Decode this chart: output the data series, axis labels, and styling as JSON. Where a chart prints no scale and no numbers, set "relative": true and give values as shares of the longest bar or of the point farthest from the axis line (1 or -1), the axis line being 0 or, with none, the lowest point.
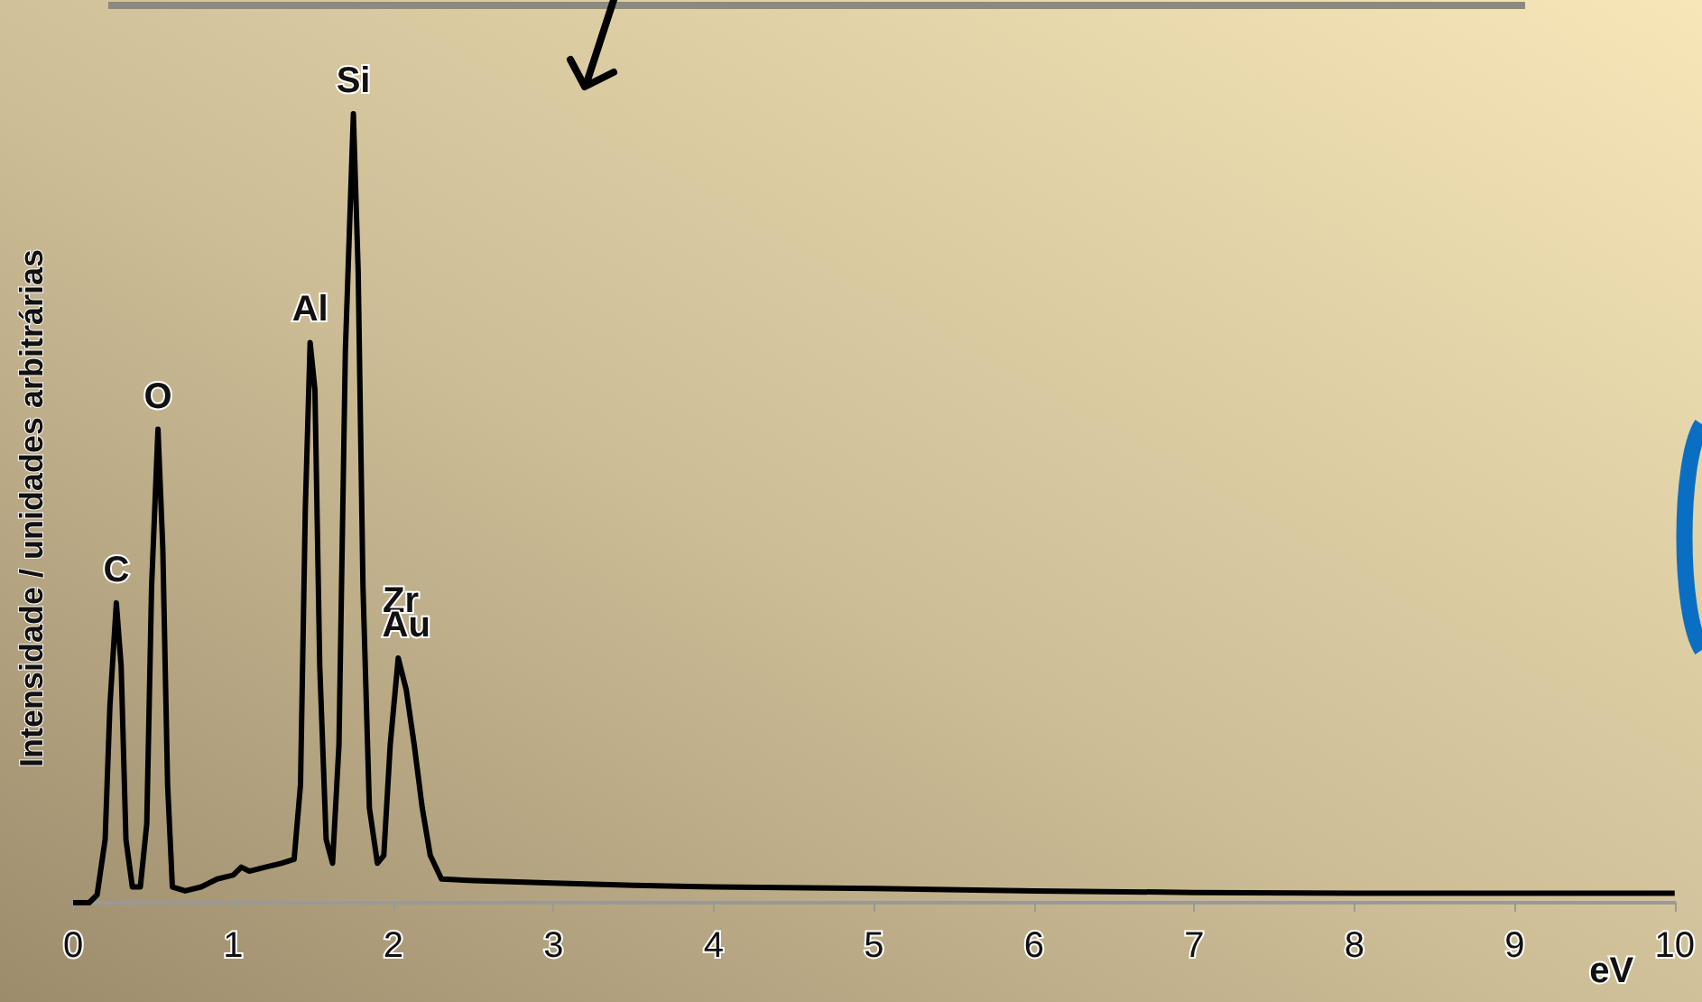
{
  "chart_data": {
    "type": "line",
    "relative": true,
    "xlabel": "eV",
    "ylabel": "Intensidade / unidades arbitrárias",
    "xlim": [
      0,
      10
    ],
    "xticks": [
      0,
      1,
      2,
      3,
      4,
      5,
      6,
      7,
      8,
      9,
      10
    ],
    "grid": false,
    "marker": "none",
    "line_style": "solid",
    "series": [
      {
        "color": "#000000",
        "x": [
          0,
          0.1,
          0.15,
          0.2,
          0.23,
          0.27,
          0.3,
          0.33,
          0.37,
          0.42,
          0.46,
          0.49,
          0.53,
          0.56,
          0.59,
          0.62,
          0.7,
          0.8,
          0.9,
          1.0,
          1.05,
          1.1,
          1.2,
          1.3,
          1.38,
          1.42,
          1.45,
          1.48,
          1.51,
          1.54,
          1.58,
          1.62,
          1.66,
          1.7,
          1.75,
          1.78,
          1.81,
          1.85,
          1.9,
          1.94,
          1.98,
          2.03,
          2.08,
          2.13,
          2.18,
          2.23,
          2.3,
          2.5,
          3,
          3.5,
          4,
          5,
          6,
          7,
          8,
          9,
          10
        ],
        "values": [
          0.0,
          0.0,
          0.01,
          0.08,
          0.25,
          0.38,
          0.3,
          0.08,
          0.02,
          0.02,
          0.1,
          0.4,
          0.6,
          0.45,
          0.15,
          0.02,
          0.015,
          0.02,
          0.03,
          0.035,
          0.045,
          0.04,
          0.045,
          0.05,
          0.055,
          0.15,
          0.5,
          0.71,
          0.65,
          0.3,
          0.08,
          0.05,
          0.2,
          0.7,
          1.0,
          0.8,
          0.4,
          0.12,
          0.05,
          0.06,
          0.2,
          0.31,
          0.27,
          0.2,
          0.12,
          0.06,
          0.03,
          0.028,
          0.025,
          0.022,
          0.02,
          0.018,
          0.015,
          0.013,
          0.012,
          0.012,
          0.012
        ]
      }
    ],
    "annotations": [
      {
        "text": "C",
        "x": 0.27,
        "y": 0.38
      },
      {
        "text": "O",
        "x": 0.53,
        "y": 0.6
      },
      {
        "text": "Al",
        "x": 1.48,
        "y": 0.71
      },
      {
        "text": "Si",
        "x": 1.75,
        "y": 1.0
      },
      "Zr",
      {
        "text": "Au",
        "x": 2.08,
        "y": 0.31
      }
    ]
  }
}
